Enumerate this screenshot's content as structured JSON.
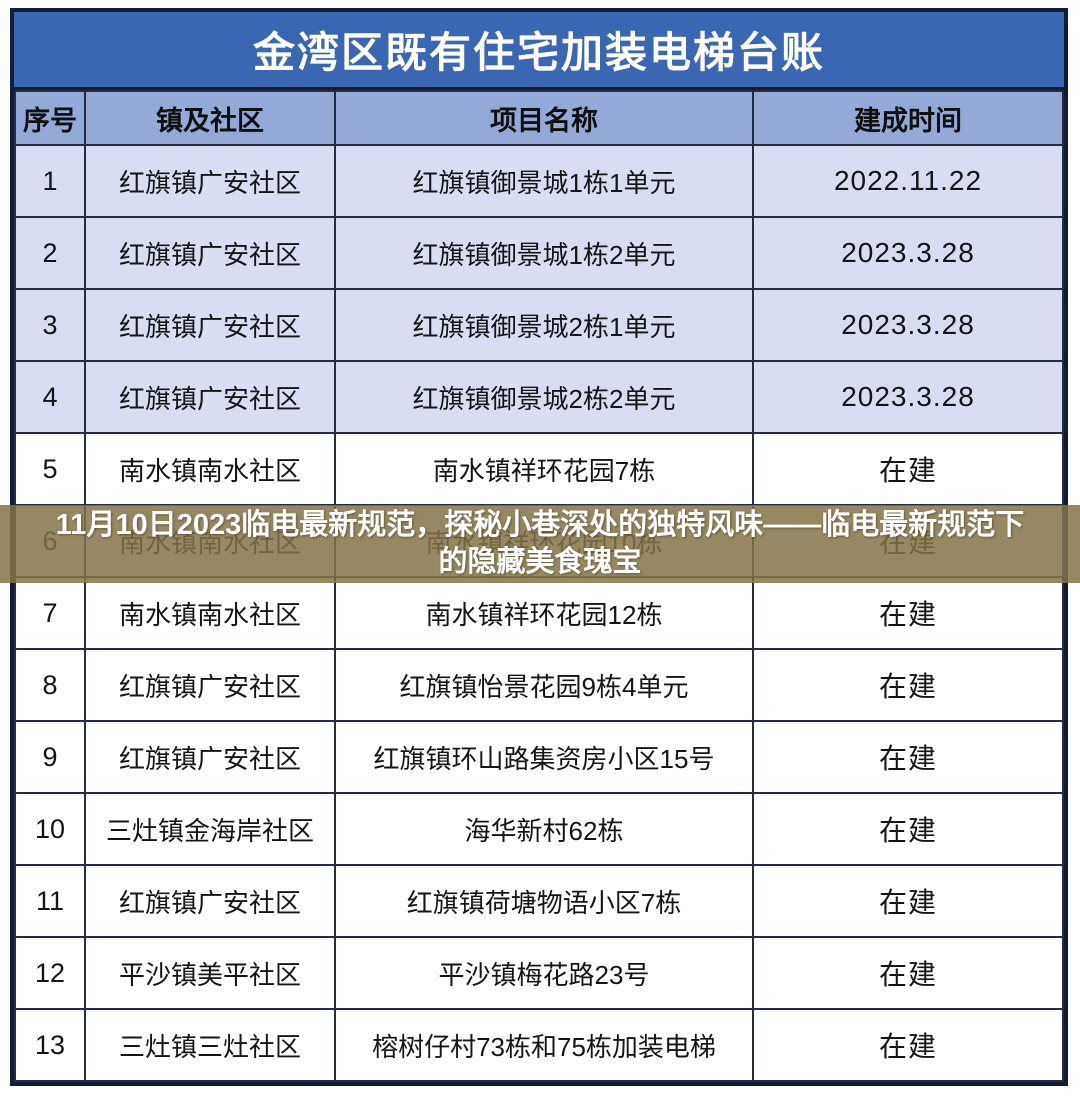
{
  "table": {
    "title": "金湾区既有住宅加装电梯台账",
    "columns": [
      "序号",
      "镇及社区",
      "项目名称",
      "建成时间"
    ],
    "rows": [
      {
        "no": "1",
        "community": "红旗镇广安社区",
        "project": "红旗镇御景城1栋1单元",
        "status": "2022.11.22"
      },
      {
        "no": "2",
        "community": "红旗镇广安社区",
        "project": "红旗镇御景城1栋2单元",
        "status": "2023.3.28"
      },
      {
        "no": "3",
        "community": "红旗镇广安社区",
        "project": "红旗镇御景城2栋1单元",
        "status": "2023.3.28"
      },
      {
        "no": "4",
        "community": "红旗镇广安社区",
        "project": "红旗镇御景城2栋2单元",
        "status": "2023.3.28"
      },
      {
        "no": "5",
        "community": "南水镇南水社区",
        "project": "南水镇祥环花园7栋",
        "status": "在建"
      },
      {
        "no": "6",
        "community": "南水镇南水社区",
        "project": "南水镇祥环花园10栋",
        "status": "在建"
      },
      {
        "no": "7",
        "community": "南水镇南水社区",
        "project": "南水镇祥环花园12栋",
        "status": "在建"
      },
      {
        "no": "8",
        "community": "红旗镇广安社区",
        "project": "红旗镇怡景花园9栋4单元",
        "status": "在建"
      },
      {
        "no": "9",
        "community": "红旗镇广安社区",
        "project": "红旗镇环山路集资房小区15号",
        "status": "在建"
      },
      {
        "no": "10",
        "community": "三灶镇金海岸社区",
        "project": "海华新村62栋",
        "status": "在建"
      },
      {
        "no": "11",
        "community": "红旗镇广安社区",
        "project": "红旗镇荷塘物语小区7栋",
        "status": "在建"
      },
      {
        "no": "12",
        "community": "平沙镇美平社区",
        "project": "平沙镇梅花路23号",
        "status": "在建"
      },
      {
        "no": "13",
        "community": "三灶镇三灶社区",
        "project": "榕树仔村73栋和75栋加装电梯",
        "status": "在建"
      }
    ]
  },
  "overlay_banner": {
    "text": "11月10日2023临电最新规范，探秘小巷深处的独特风味——临电最新规范下的隐藏美食瑰宝"
  },
  "colors": {
    "title_bg": "#3A67B1",
    "title_text": "#FFFFFF",
    "header_bg": "#94A9D8",
    "row_highlight_bg": "#D8DDF2",
    "row_bg": "#FFFFFF",
    "grid_line": "#242C42",
    "outer_border": "#141D33",
    "banner_bg": "rgba(130,115,70,0.85)",
    "banner_text": "#FFFFFF",
    "body_text": "#151515"
  }
}
